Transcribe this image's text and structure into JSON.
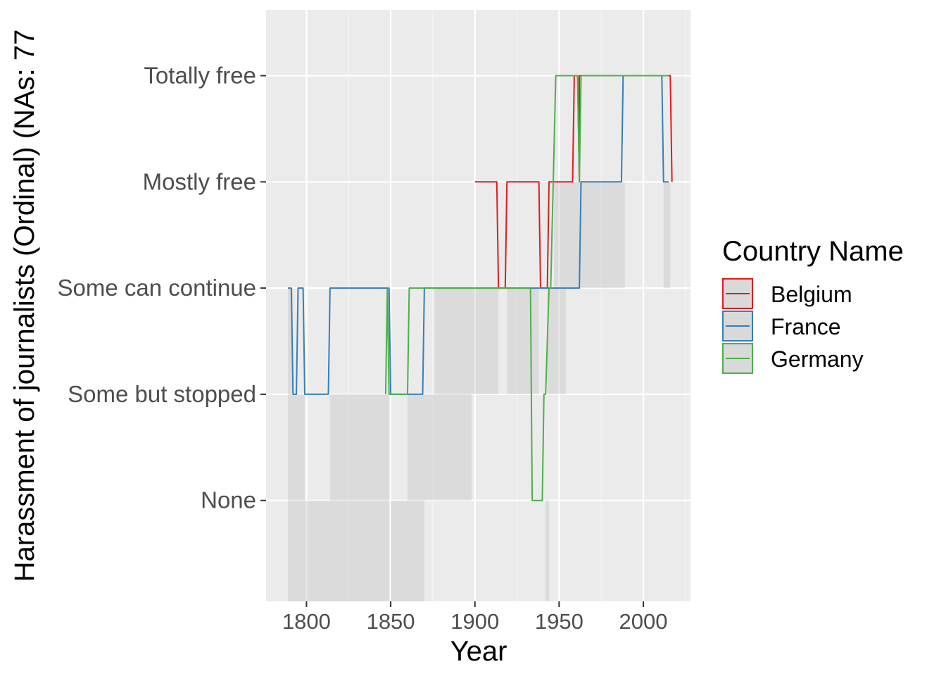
{
  "chart_data": {
    "type": "line",
    "title": "",
    "xlabel": "Year",
    "ylabel": "Harassment of journalists (Ordinal) (NAs: 77",
    "x_ticks": [
      1800,
      1850,
      1900,
      1950,
      2000
    ],
    "xlim": [
      1776,
      2028
    ],
    "y_categories": [
      "None",
      "Some but stopped",
      "Some can continue",
      "Mostly free",
      "Totally free"
    ],
    "ylim": [
      -0.95,
      4.62
    ],
    "grid": true,
    "legend": {
      "title": "Country Name",
      "position": "right",
      "entries": [
        "Belgium",
        "France",
        "Germany"
      ]
    },
    "series": [
      {
        "name": "Belgium",
        "color": "#e41a1c",
        "points": [
          [
            1900,
            3
          ],
          [
            1913,
            3
          ],
          [
            1914,
            2
          ],
          [
            1918,
            2
          ],
          [
            1919,
            3
          ],
          [
            1938,
            3
          ],
          [
            1939,
            2
          ],
          [
            1943,
            2
          ],
          [
            1944,
            3
          ],
          [
            1958,
            3
          ],
          [
            1959,
            4
          ],
          [
            1961,
            4
          ],
          [
            1962,
            3
          ],
          [
            1962,
            4
          ],
          [
            2016,
            4
          ],
          [
            2017,
            3
          ]
        ]
      },
      {
        "name": "France",
        "color": "#377eb8",
        "points": [
          [
            1789,
            2
          ],
          [
            1791,
            2
          ],
          [
            1792,
            1
          ],
          [
            1794,
            1
          ],
          [
            1795,
            2
          ],
          [
            1798,
            2
          ],
          [
            1799,
            1
          ],
          [
            1813,
            1
          ],
          [
            1814,
            2
          ],
          [
            1849,
            2
          ],
          [
            1850,
            1
          ],
          [
            1869,
            1
          ],
          [
            1870,
            2
          ],
          [
            1962,
            2
          ],
          [
            1963,
            3
          ],
          [
            1987,
            3
          ],
          [
            1988,
            4
          ],
          [
            2011,
            4
          ],
          [
            2012,
            3
          ],
          [
            2015,
            3
          ]
        ]
      },
      {
        "name": "Germany",
        "color": "#4daf4a",
        "points": [
          [
            1847,
            1
          ],
          [
            1848,
            2
          ],
          [
            1849,
            1
          ],
          [
            1860,
            1
          ],
          [
            1861,
            2
          ],
          [
            1933,
            2
          ],
          [
            1934,
            0
          ],
          [
            1940,
            0
          ],
          [
            1941,
            1
          ],
          [
            1942,
            1
          ],
          [
            1944,
            2
          ],
          [
            1945,
            2
          ],
          [
            1948,
            4
          ],
          [
            1961,
            4
          ],
          [
            1962,
            3
          ],
          [
            1963,
            4
          ],
          [
            2015,
            4
          ]
        ]
      }
    ],
    "ci_bands": [
      {
        "x0": 1789,
        "x1": 1792,
        "lo": -0.95,
        "hi": 2
      },
      {
        "x0": 1792,
        "x1": 1795,
        "lo": -0.95,
        "hi": 1
      },
      {
        "x0": 1795,
        "x1": 1799,
        "lo": -0.95,
        "hi": 1
      },
      {
        "x0": 1799,
        "x1": 1814,
        "lo": -0.95,
        "hi": 0
      },
      {
        "x0": 1814,
        "x1": 1849,
        "lo": -0.95,
        "hi": 1
      },
      {
        "x0": 1850,
        "x1": 1860,
        "lo": -0.95,
        "hi": 0
      },
      {
        "x0": 1860,
        "x1": 1870,
        "lo": -0.95,
        "hi": 1
      },
      {
        "x0": 1870,
        "x1": 1876,
        "lo": 0,
        "hi": 1
      },
      {
        "x0": 1876,
        "x1": 1898,
        "lo": 0,
        "hi": 1
      },
      {
        "x0": 1876,
        "x1": 1914,
        "lo": 1,
        "hi": 2
      },
      {
        "x0": 1919,
        "x1": 1938,
        "lo": 1,
        "hi": 2
      },
      {
        "x0": 1943,
        "x1": 1954,
        "lo": 1,
        "hi": 2
      },
      {
        "x0": 1942,
        "x1": 1944,
        "lo": -0.95,
        "hi": 0
      },
      {
        "x0": 1947,
        "x1": 1989,
        "lo": 2,
        "hi": 3
      },
      {
        "x0": 2012,
        "x1": 2016,
        "lo": 2,
        "hi": 3
      }
    ]
  }
}
